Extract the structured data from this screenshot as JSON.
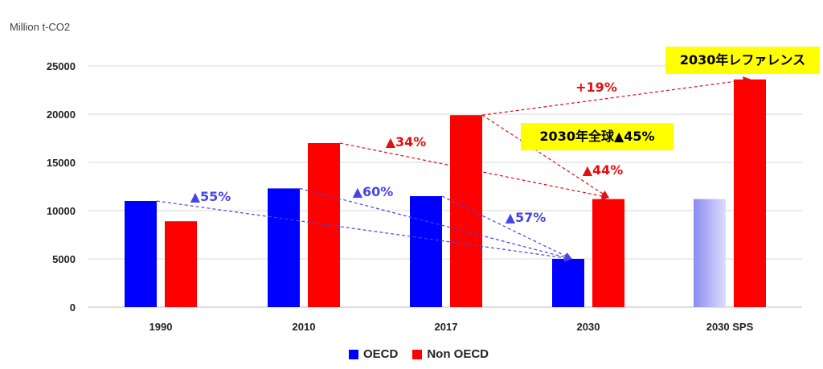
{
  "colors": {
    "oecd": "#0000ff",
    "non_oecd": "#ff0000",
    "sps_oecd_light": "#dcdcff",
    "annotation_blue": "#4646e6",
    "annotation_red": "#e01010",
    "callout_bg": "#ffff00",
    "grid": "#d9d9d9"
  },
  "chart_data": {
    "type": "bar",
    "y_unit_label": "Million t-CO2",
    "categories": [
      "1990",
      "2010",
      "2017",
      "2030",
      "2030 SPS"
    ],
    "series": [
      {
        "name": "OECD",
        "values": [
          11000,
          12300,
          11500,
          5000,
          11200
        ]
      },
      {
        "name": "Non OECD",
        "values": [
          8900,
          17000,
          19900,
          11200,
          23600
        ]
      }
    ],
    "ylim": [
      0,
      25000
    ],
    "yticks": [
      0,
      5000,
      10000,
      15000,
      20000,
      25000
    ],
    "grid": true,
    "legend_placement": "bottom-center",
    "annotations": {
      "oecd_changes": [
        {
          "label": "▲55%",
          "from": "1990",
          "to": "2030"
        },
        {
          "label": "▲60%",
          "from": "2010",
          "to": "2030"
        },
        {
          "label": "▲57%",
          "from": "2017",
          "to": "2030"
        }
      ],
      "non_oecd_changes": [
        {
          "label": "▲34%",
          "from": "2010",
          "to": "2030"
        },
        {
          "label": "▲44%",
          "from": "2017",
          "to": "2030"
        },
        {
          "label": "+19%",
          "from": "2017",
          "to": "2030 SPS"
        }
      ],
      "callouts": {
        "reference": "2030年レファレンス",
        "global": "2030年全球▲45%"
      }
    }
  }
}
